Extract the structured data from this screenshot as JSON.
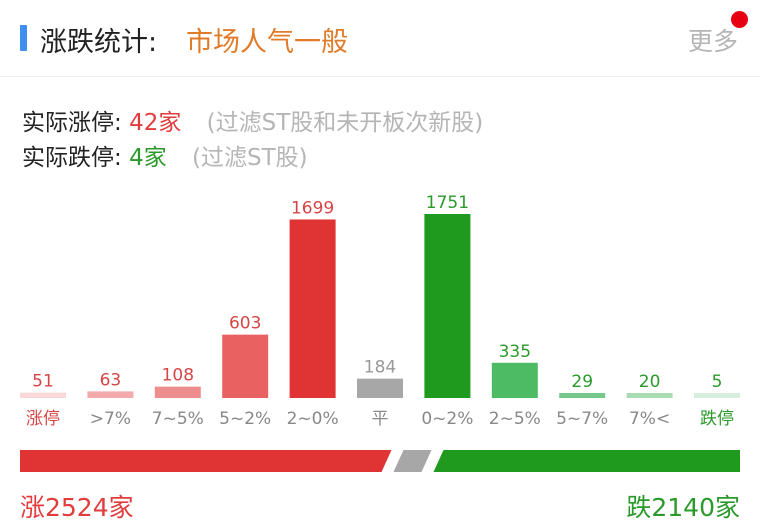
{
  "header": {
    "title": "涨跌统计:",
    "mood": "市场人气一般",
    "more_label": "更多",
    "accent_color": "#3f8ff0",
    "badge_color": "#e60012"
  },
  "limit_stats": {
    "up_label": "实际涨停:",
    "up_value": "42家",
    "up_note": "(过滤ST股和未开板次新股)",
    "down_label": "实际跌停:",
    "down_value": "4家",
    "down_note": "(过滤ST股)"
  },
  "chart_data": {
    "type": "bar",
    "categories": [
      "涨停",
      ">7%",
      "7~5%",
      "5~2%",
      "2~0%",
      "平",
      "0~2%",
      "2~5%",
      "5~7%",
      "7%<",
      "跌停"
    ],
    "values": [
      51,
      63,
      108,
      603,
      1699,
      184,
      1751,
      335,
      29,
      20,
      5
    ],
    "colors": [
      "#f9d8d8",
      "#f3aaaa",
      "#ee8d8d",
      "#ea6161",
      "#e03333",
      "#a7a7a7",
      "#1f9a1f",
      "#4cbb63",
      "#77c98b",
      "#a9dcb3",
      "#d6eedb"
    ],
    "label_colors": [
      "#d64545",
      "#888888",
      "#888888",
      "#888888",
      "#888888",
      "#888888",
      "#888888",
      "#888888",
      "#888888",
      "#888888",
      "#2a9a2a"
    ],
    "value_colors": [
      "#d64545",
      "#d64545",
      "#d64545",
      "#d64545",
      "#d64545",
      "#999999",
      "#2a9a2a",
      "#2a9a2a",
      "#2a9a2a",
      "#2a9a2a",
      "#2a9a2a"
    ],
    "ylim": [
      0,
      1751
    ]
  },
  "totals": {
    "up_text": "涨2524家",
    "down_text": "跌2140家",
    "up_count": 2524,
    "down_count": 2140,
    "up_color": "#e03333",
    "flat_color": "#a7a7a7",
    "down_color": "#1f9a1f"
  }
}
